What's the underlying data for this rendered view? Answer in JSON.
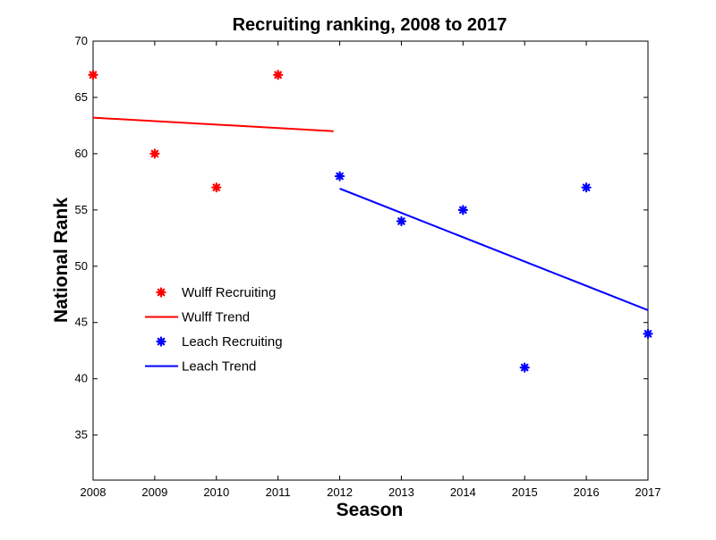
{
  "chart_data": {
    "type": "scatter",
    "title": "Recruiting ranking, 2008 to 2017",
    "xlabel": "Season",
    "ylabel": "National Rank",
    "xlim": [
      2008,
      2017
    ],
    "ylim": [
      31,
      70
    ],
    "xticks": [
      2008,
      2009,
      2010,
      2011,
      2012,
      2013,
      2014,
      2015,
      2016,
      2017
    ],
    "yticks": [
      35,
      40,
      45,
      50,
      55,
      60,
      65,
      70
    ],
    "grid": false,
    "legend_position": "left",
    "series": [
      {
        "name": "Wulff Recruiting",
        "kind": "scatter",
        "marker": "asterisk",
        "color": "#ff0000",
        "x": [
          2008,
          2009,
          2010,
          2011
        ],
        "y": [
          67,
          60,
          57,
          67
        ]
      },
      {
        "name": "Wulff Trend",
        "kind": "line",
        "color": "#ff0000",
        "x": [
          2008,
          2011.9
        ],
        "y": [
          63.2,
          62.0
        ]
      },
      {
        "name": "Leach Recruiting",
        "kind": "scatter",
        "marker": "asterisk",
        "color": "#0000ff",
        "x": [
          2012,
          2013,
          2014,
          2015,
          2016,
          2017
        ],
        "y": [
          58,
          54,
          55,
          41,
          57,
          44
        ]
      },
      {
        "name": "Leach Trend",
        "kind": "line",
        "color": "#0000ff",
        "x": [
          2012,
          2017
        ],
        "y": [
          56.9,
          46.1
        ]
      }
    ]
  }
}
